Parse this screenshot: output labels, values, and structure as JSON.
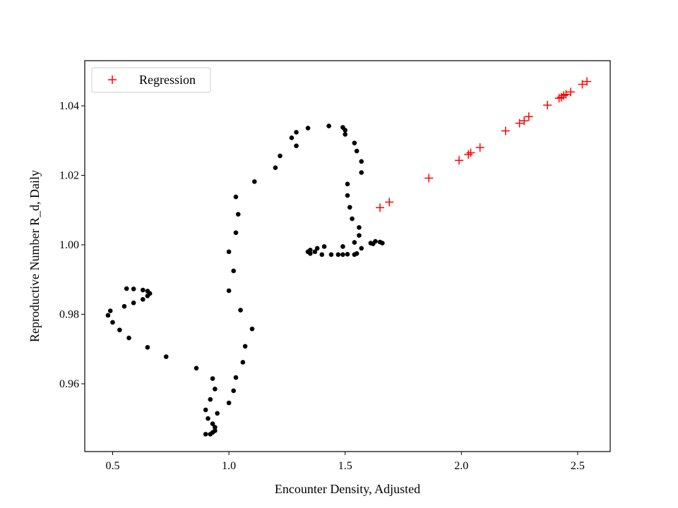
{
  "chart_data": {
    "type": "scatter",
    "title": "",
    "xlabel": "Encounter Density, Adjusted",
    "ylabel": "Reproductive Number R_d, Daily",
    "xlim": [
      0.38,
      2.64
    ],
    "ylim": [
      0.9405,
      1.053
    ],
    "xticks": [
      0.5,
      1.0,
      1.5,
      2.0,
      2.5
    ],
    "xtick_labels": [
      "0.5",
      "1.0",
      "1.5",
      "2.0",
      "2.5"
    ],
    "yticks": [
      0.96,
      0.98,
      1.0,
      1.02,
      1.04
    ],
    "ytick_labels": [
      "0.96",
      "0.98",
      "1.00",
      "1.02",
      "1.04"
    ],
    "grid": false,
    "legend": {
      "position": "top-left",
      "entries": [
        "Regression"
      ]
    },
    "series": [
      {
        "marker": "dot",
        "color": "#000000",
        "points": [
          [
            0.9,
            0.9455
          ],
          [
            0.92,
            0.9455
          ],
          [
            0.93,
            0.946
          ],
          [
            0.94,
            0.9465
          ],
          [
            0.94,
            0.9475
          ],
          [
            0.93,
            0.9485
          ],
          [
            0.91,
            0.95
          ],
          [
            0.95,
            0.9515
          ],
          [
            0.9,
            0.9525
          ],
          [
            0.92,
            0.9555
          ],
          [
            0.94,
            0.9585
          ],
          [
            0.93,
            0.9615
          ],
          [
            0.86,
            0.9645
          ],
          [
            0.73,
            0.9678
          ],
          [
            0.65,
            0.9705
          ],
          [
            0.57,
            0.9732
          ],
          [
            0.53,
            0.9755
          ],
          [
            0.5,
            0.9777
          ],
          [
            0.48,
            0.9797
          ],
          [
            0.49,
            0.981
          ],
          [
            0.55,
            0.9823
          ],
          [
            0.59,
            0.9833
          ],
          [
            0.63,
            0.9843
          ],
          [
            0.65,
            0.9853
          ],
          [
            0.66,
            0.986
          ],
          [
            0.65,
            0.9867
          ],
          [
            0.63,
            0.987
          ],
          [
            0.59,
            0.9873
          ],
          [
            0.56,
            0.9874
          ],
          [
            1.0,
            0.9545
          ],
          [
            1.02,
            0.958
          ],
          [
            1.03,
            0.9618
          ],
          [
            1.06,
            0.9662
          ],
          [
            1.07,
            0.9708
          ],
          [
            1.1,
            0.9758
          ],
          [
            1.05,
            0.9812
          ],
          [
            1.0,
            0.9868
          ],
          [
            1.02,
            0.9925
          ],
          [
            1.0,
            0.998
          ],
          [
            1.03,
            1.0035
          ],
          [
            1.04,
            1.0088
          ],
          [
            1.03,
            1.0138
          ],
          [
            1.11,
            1.0182
          ],
          [
            1.2,
            1.0222
          ],
          [
            1.22,
            1.0256
          ],
          [
            1.29,
            1.0285
          ],
          [
            1.27,
            1.0308
          ],
          [
            1.29,
            1.0324
          ],
          [
            1.34,
            1.0336
          ],
          [
            1.43,
            1.0342
          ],
          [
            1.49,
            1.0338
          ],
          [
            1.5,
            1.033
          ],
          [
            1.5,
            1.0318
          ],
          [
            1.54,
            1.0293
          ],
          [
            1.55,
            1.027
          ],
          [
            1.57,
            1.024
          ],
          [
            1.57,
            1.0208
          ],
          [
            1.51,
            1.0175
          ],
          [
            1.51,
            1.0142
          ],
          [
            1.52,
            1.0108
          ],
          [
            1.53,
            1.0075
          ],
          [
            1.56,
            1.005
          ],
          [
            1.56,
            1.0027
          ],
          [
            1.54,
            1.0007
          ],
          [
            1.57,
            0.999
          ],
          [
            1.55,
            0.9975
          ],
          [
            1.54,
            0.9972
          ],
          [
            1.51,
            0.9973
          ],
          [
            1.49,
            0.9972
          ],
          [
            1.47,
            0.9972
          ],
          [
            1.44,
            0.9972
          ],
          [
            1.4,
            0.9972
          ],
          [
            1.37,
            0.998
          ],
          [
            1.35,
            0.9985
          ],
          [
            1.34,
            0.998
          ],
          [
            1.35,
            0.9975
          ],
          [
            1.38,
            0.999
          ],
          [
            1.41,
            0.9995
          ],
          [
            1.49,
            0.9995
          ],
          [
            1.61,
            1.0005
          ],
          [
            1.63,
            1.001
          ],
          [
            1.65,
            1.0008
          ],
          [
            1.66,
            1.0005
          ],
          [
            1.62,
            1.0003
          ]
        ]
      },
      {
        "name": "Regression",
        "marker": "plus",
        "color": "#ff0000",
        "points": [
          [
            1.65,
            1.0107
          ],
          [
            1.69,
            1.0123
          ],
          [
            1.86,
            1.0192
          ],
          [
            1.99,
            1.0243
          ],
          [
            2.03,
            1.026
          ],
          [
            2.04,
            1.0265
          ],
          [
            2.08,
            1.028
          ],
          [
            2.19,
            1.0328
          ],
          [
            2.25,
            1.035
          ],
          [
            2.27,
            1.0357
          ],
          [
            2.29,
            1.0369
          ],
          [
            2.37,
            1.0402
          ],
          [
            2.42,
            1.0422
          ],
          [
            2.43,
            1.0425
          ],
          [
            2.44,
            1.043
          ],
          [
            2.45,
            1.0433
          ],
          [
            2.47,
            1.044
          ],
          [
            2.52,
            1.0462
          ],
          [
            2.54,
            1.047
          ]
        ]
      }
    ]
  }
}
